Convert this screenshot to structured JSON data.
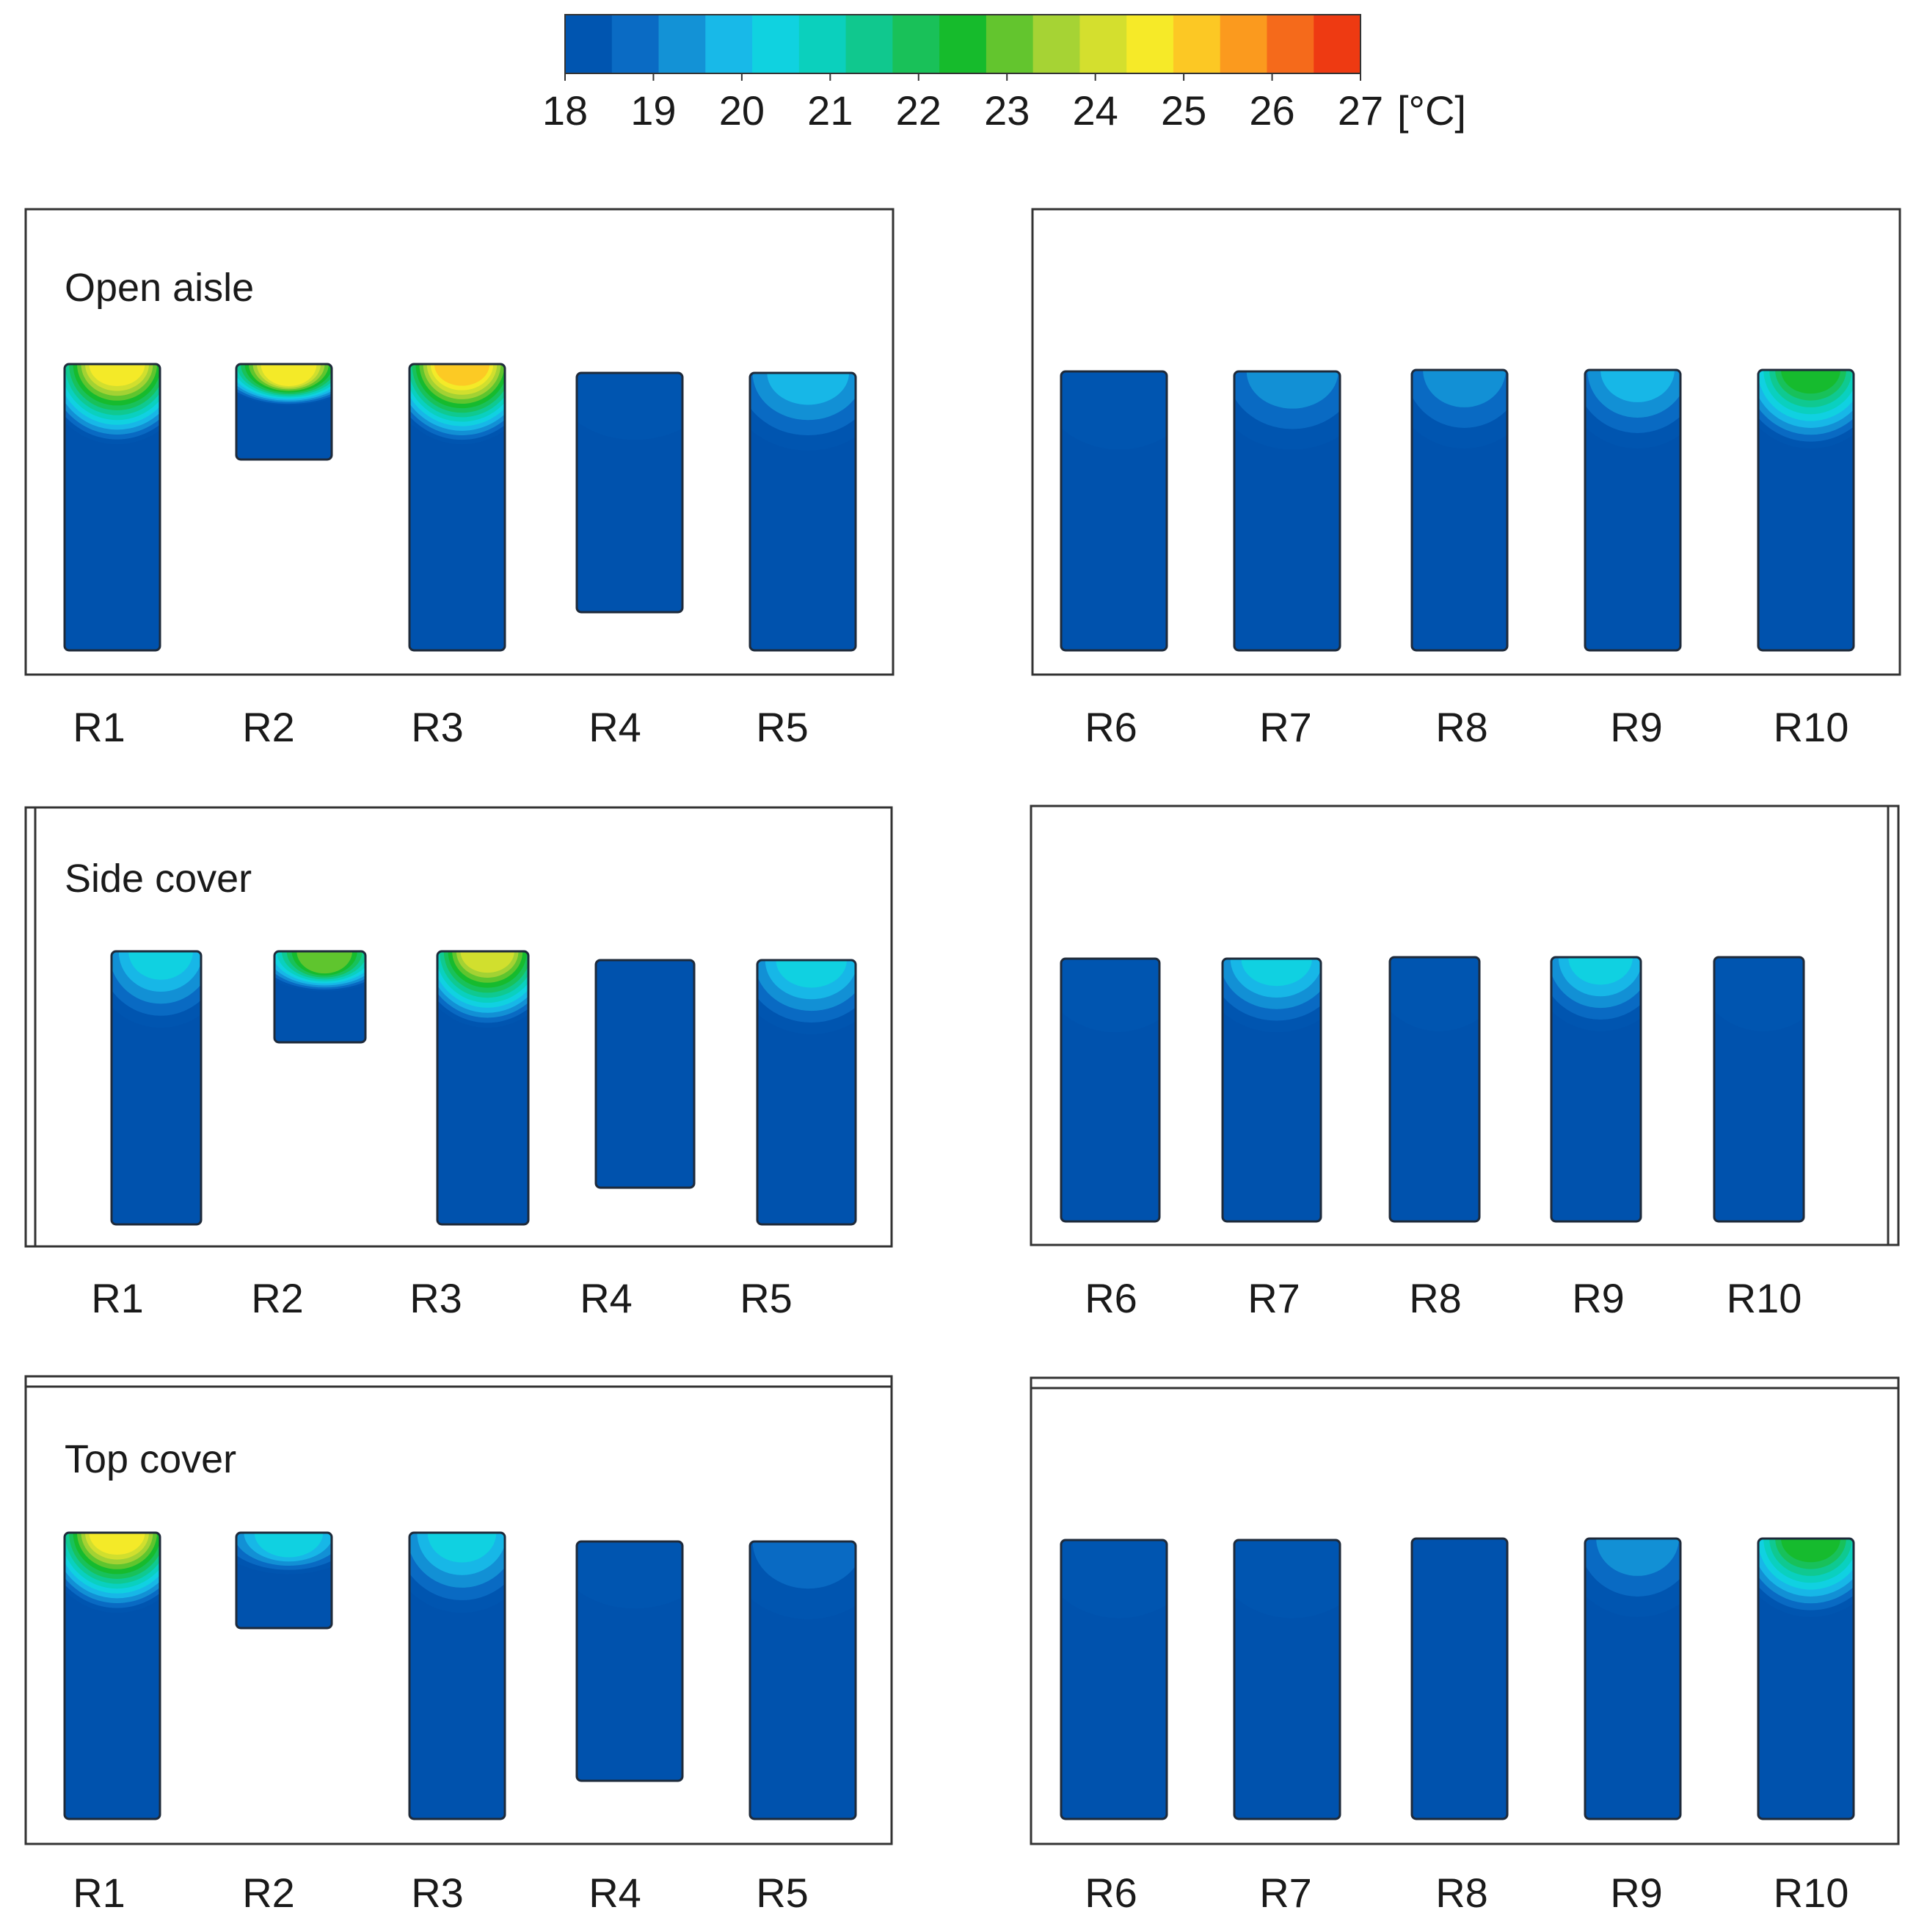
{
  "chart_data": {
    "type": "heatmap",
    "description_unit": "[°C]",
    "colorbar": {
      "min": 18,
      "max": 27,
      "ticks": [
        "18",
        "19",
        "20",
        "21",
        "22",
        "23",
        "24",
        "25",
        "26",
        "27"
      ],
      "unit": "[°C]",
      "colors": [
        "#0055b0",
        "#0a6bc4",
        "#1392d6",
        "#18b9e8",
        "#10d2e0",
        "#0bd0bd",
        "#10c88e",
        "#19c159",
        "#16bb2c",
        "#63c52e",
        "#a6d334",
        "#d4df2e",
        "#f6ea28",
        "#fcc824",
        "#fb9a1e",
        "#f56a1b",
        "#ee3a12"
      ]
    },
    "base_color": "#0052ad",
    "panels": [
      {
        "title": "Open aisle",
        "left": {
          "labels": [
            "R1",
            "R2",
            "R3",
            "R4",
            "R5"
          ],
          "max_temps": [
            24.5,
            24.5,
            25.0,
            18.5,
            20.0
          ]
        },
        "right": {
          "labels": [
            "R6",
            "R7",
            "R8",
            "R9",
            "R10"
          ],
          "max_temps": [
            18.5,
            19.5,
            19.5,
            20.0,
            22.5
          ]
        }
      },
      {
        "title": "Side cover",
        "left": {
          "labels": [
            "R1",
            "R2",
            "R3",
            "R4",
            "R5"
          ],
          "max_temps": [
            20.5,
            23.0,
            24.0,
            18.2,
            20.5
          ]
        },
        "right": {
          "labels": [
            "R6",
            "R7",
            "R8",
            "R9",
            "R10"
          ],
          "max_temps": [
            18.5,
            20.5,
            18.5,
            20.5,
            18.5
          ]
        }
      },
      {
        "title": "Top cover",
        "left": {
          "labels": [
            "R1",
            "R2",
            "R3",
            "R4",
            "R5"
          ],
          "max_temps": [
            24.5,
            20.5,
            20.5,
            18.5,
            19.0
          ]
        },
        "right": {
          "labels": [
            "R6",
            "R7",
            "R8",
            "R9",
            "R10"
          ],
          "max_temps": [
            18.8,
            18.5,
            18.2,
            19.5,
            22.5
          ]
        }
      }
    ]
  }
}
